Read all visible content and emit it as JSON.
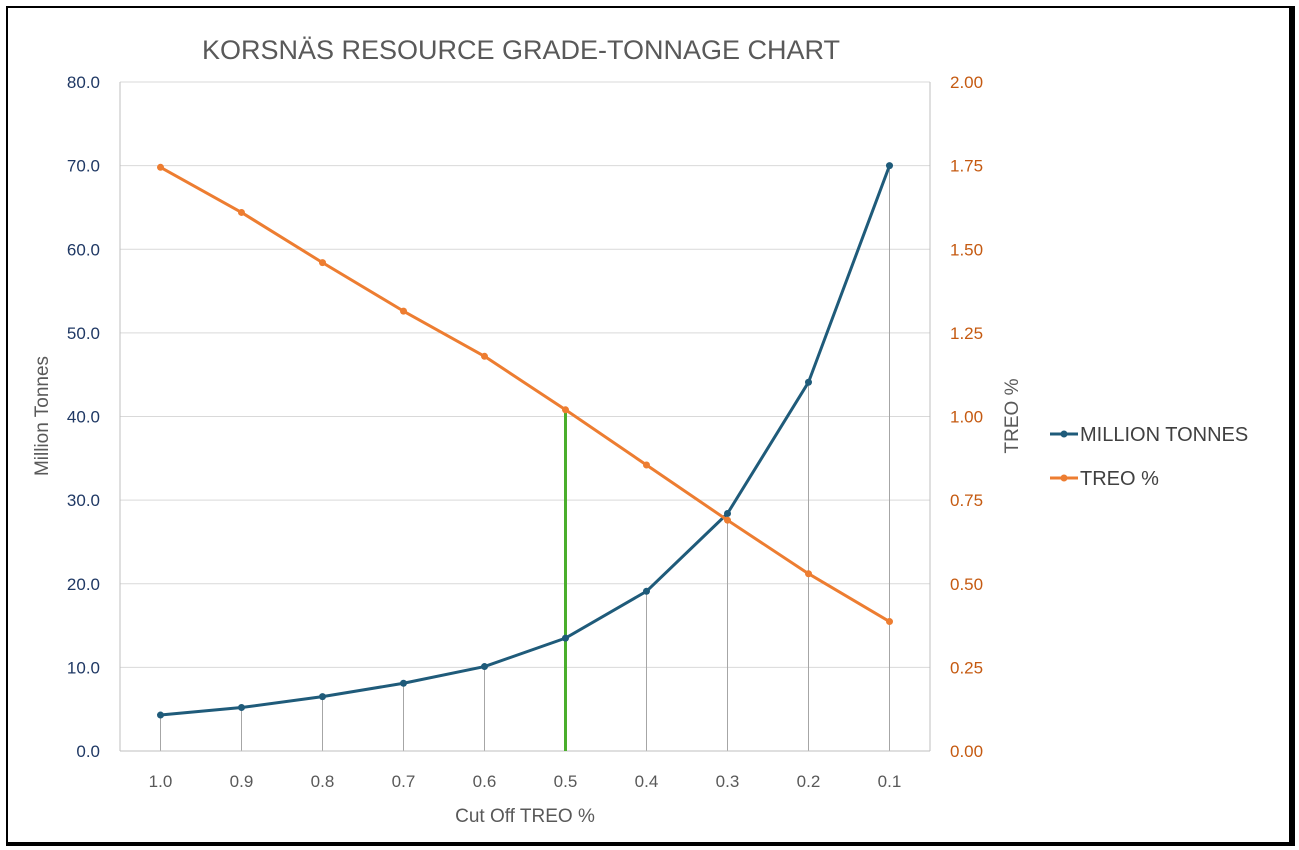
{
  "chart_data": {
    "type": "line",
    "title": "KORSNÄS RESOURCE GRADE-TONNAGE CHART",
    "xlabel": "Cut Off TREO %",
    "ylabel": "Million Tonnes",
    "y2label": "TREO %",
    "categories": [
      "1.0",
      "0.9",
      "0.8",
      "0.7",
      "0.6",
      "0.5",
      "0.4",
      "0.3",
      "0.2",
      "0.1"
    ],
    "ylim": [
      0,
      80
    ],
    "y2lim": [
      0,
      2.0
    ],
    "yticks": [
      "0.0",
      "10.0",
      "20.0",
      "30.0",
      "40.0",
      "50.0",
      "60.0",
      "70.0",
      "80.0"
    ],
    "y2ticks": [
      "0.00",
      "0.25",
      "0.50",
      "0.75",
      "1.00",
      "1.25",
      "1.50",
      "1.75",
      "2.00"
    ],
    "series": [
      {
        "name": "MILLION TONNES",
        "axis": "left",
        "color": "#1f5b7a",
        "values": [
          4.3,
          5.2,
          6.5,
          8.1,
          10.1,
          13.5,
          19.1,
          28.4,
          44.1,
          70.0
        ]
      },
      {
        "name": "TREO %",
        "axis": "right",
        "color": "#ed7d31",
        "values": [
          1.745,
          1.61,
          1.46,
          1.315,
          1.18,
          1.02,
          0.855,
          0.69,
          0.53,
          0.387
        ]
      }
    ],
    "marker_line": {
      "category": "0.5",
      "value": 41.0,
      "color": "#4aae2c"
    },
    "grid": true,
    "legend_position": "right"
  }
}
